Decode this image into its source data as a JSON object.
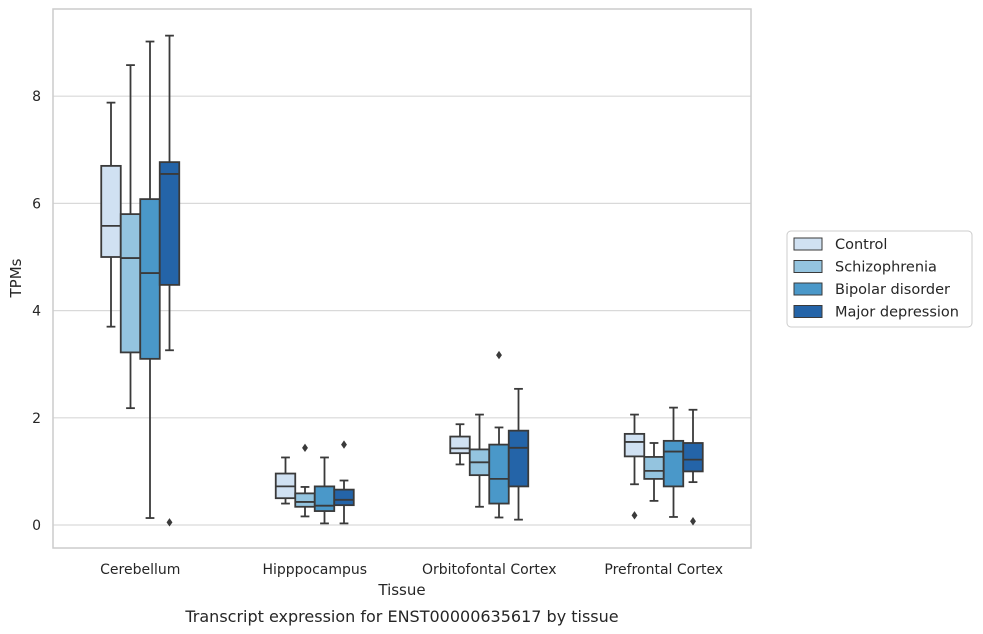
{
  "caption": "Transcript expression for ENST00000635617 by tissue",
  "chart_data": {
    "type": "box",
    "xlabel": "Tissue",
    "ylabel": "TPMs",
    "ylim": [
      -0.42,
      9.6
    ],
    "yticks": [
      0,
      2,
      4,
      6,
      8
    ],
    "grid": "horizontal",
    "legend_position": "right",
    "categories": [
      "Cerebellum",
      "Hipppocampus",
      "Orbitofontal Cortex",
      "Prefrontal Cortex"
    ],
    "series": [
      {
        "name": "Control",
        "color": "#d0e1f2",
        "boxes": [
          {
            "whisker_low": 3.7,
            "q1": 5.0,
            "median": 5.58,
            "q3": 6.7,
            "whisker_high": 7.88,
            "outliers": []
          },
          {
            "whisker_low": 0.4,
            "q1": 0.5,
            "median": 0.72,
            "q3": 0.96,
            "whisker_high": 1.26,
            "outliers": []
          },
          {
            "whisker_low": 1.13,
            "q1": 1.34,
            "median": 1.43,
            "q3": 1.65,
            "whisker_high": 1.88,
            "outliers": []
          },
          {
            "whisker_low": 0.76,
            "q1": 1.28,
            "median": 1.55,
            "q3": 1.7,
            "whisker_high": 2.06,
            "outliers": [
              0.18
            ]
          }
        ]
      },
      {
        "name": "Schizophrenia",
        "color": "#94c4df",
        "boxes": [
          {
            "whisker_low": 2.18,
            "q1": 3.22,
            "median": 4.98,
            "q3": 5.8,
            "whisker_high": 8.58,
            "outliers": []
          },
          {
            "whisker_low": 0.16,
            "q1": 0.34,
            "median": 0.43,
            "q3": 0.59,
            "whisker_high": 0.71,
            "outliers": [
              1.44
            ]
          },
          {
            "whisker_low": 0.34,
            "q1": 0.93,
            "median": 1.17,
            "q3": 1.41,
            "whisker_high": 2.06,
            "outliers": []
          },
          {
            "whisker_low": 0.45,
            "q1": 0.86,
            "median": 1.01,
            "q3": 1.27,
            "whisker_high": 1.53,
            "outliers": []
          }
        ]
      },
      {
        "name": "Bipolar disorder",
        "color": "#4a98c9",
        "boxes": [
          {
            "whisker_low": 0.13,
            "q1": 3.1,
            "median": 4.7,
            "q3": 6.08,
            "whisker_high": 9.02,
            "outliers": []
          },
          {
            "whisker_low": 0.03,
            "q1": 0.26,
            "median": 0.36,
            "q3": 0.72,
            "whisker_high": 1.26,
            "outliers": []
          },
          {
            "whisker_low": 0.14,
            "q1": 0.4,
            "median": 0.86,
            "q3": 1.5,
            "whisker_high": 1.82,
            "outliers": [
              3.17
            ]
          },
          {
            "whisker_low": 0.15,
            "q1": 0.72,
            "median": 1.37,
            "q3": 1.57,
            "whisker_high": 2.19,
            "outliers": []
          }
        ]
      },
      {
        "name": "Major depression",
        "color": "#2464a8",
        "boxes": [
          {
            "whisker_low": 3.26,
            "q1": 4.48,
            "median": 6.55,
            "q3": 6.77,
            "whisker_high": 9.13,
            "outliers": [
              0.05
            ]
          },
          {
            "whisker_low": 0.03,
            "q1": 0.37,
            "median": 0.47,
            "q3": 0.66,
            "whisker_high": 0.83,
            "outliers": [
              1.5
            ]
          },
          {
            "whisker_low": 0.1,
            "q1": 0.72,
            "median": 1.44,
            "q3": 1.76,
            "whisker_high": 2.54,
            "outliers": []
          },
          {
            "whisker_low": 0.8,
            "q1": 1.0,
            "median": 1.22,
            "q3": 1.53,
            "whisker_high": 2.15,
            "outliers": [
              0.07
            ]
          }
        ]
      }
    ]
  }
}
